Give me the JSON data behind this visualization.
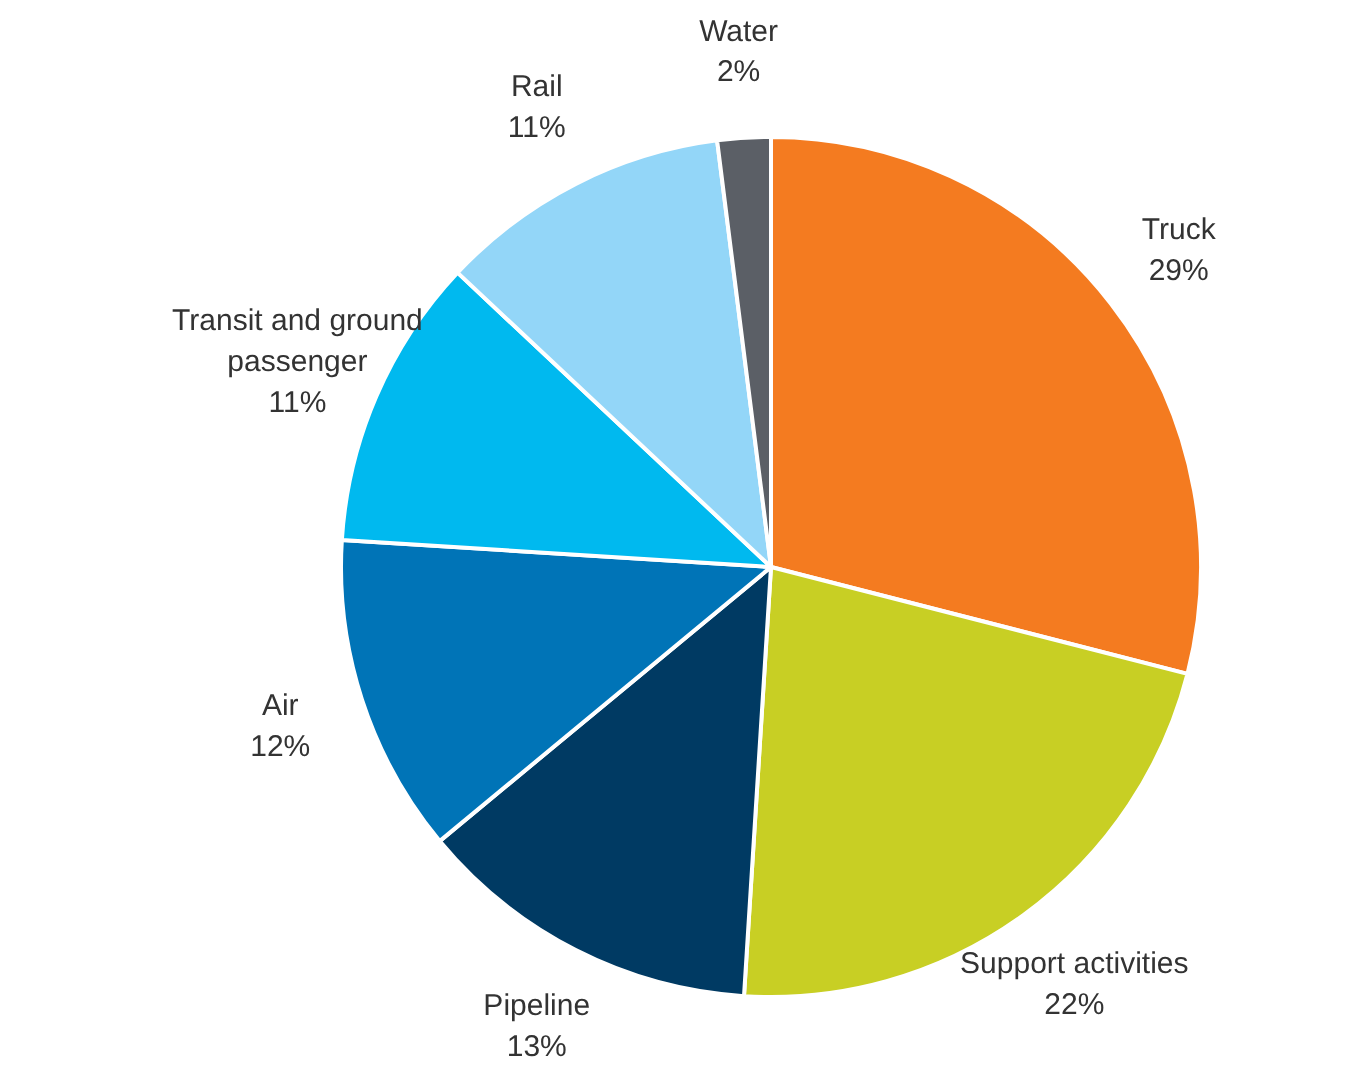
{
  "chart_data": {
    "type": "pie",
    "categories": [
      "Truck",
      "Support activities",
      "Pipeline",
      "Air",
      "Transit and ground passenger",
      "Rail",
      "Water"
    ],
    "values": [
      29,
      22,
      13,
      12,
      11,
      11,
      2
    ],
    "value_labels": [
      "29%",
      "22%",
      "13%",
      "12%",
      "11%",
      "11%",
      "2%"
    ],
    "colors": [
      "#f47b20",
      "#c8cf24",
      "#003a63",
      "#0074b7",
      "#00b9ef",
      "#93d6f8",
      "#5b5f66"
    ]
  }
}
